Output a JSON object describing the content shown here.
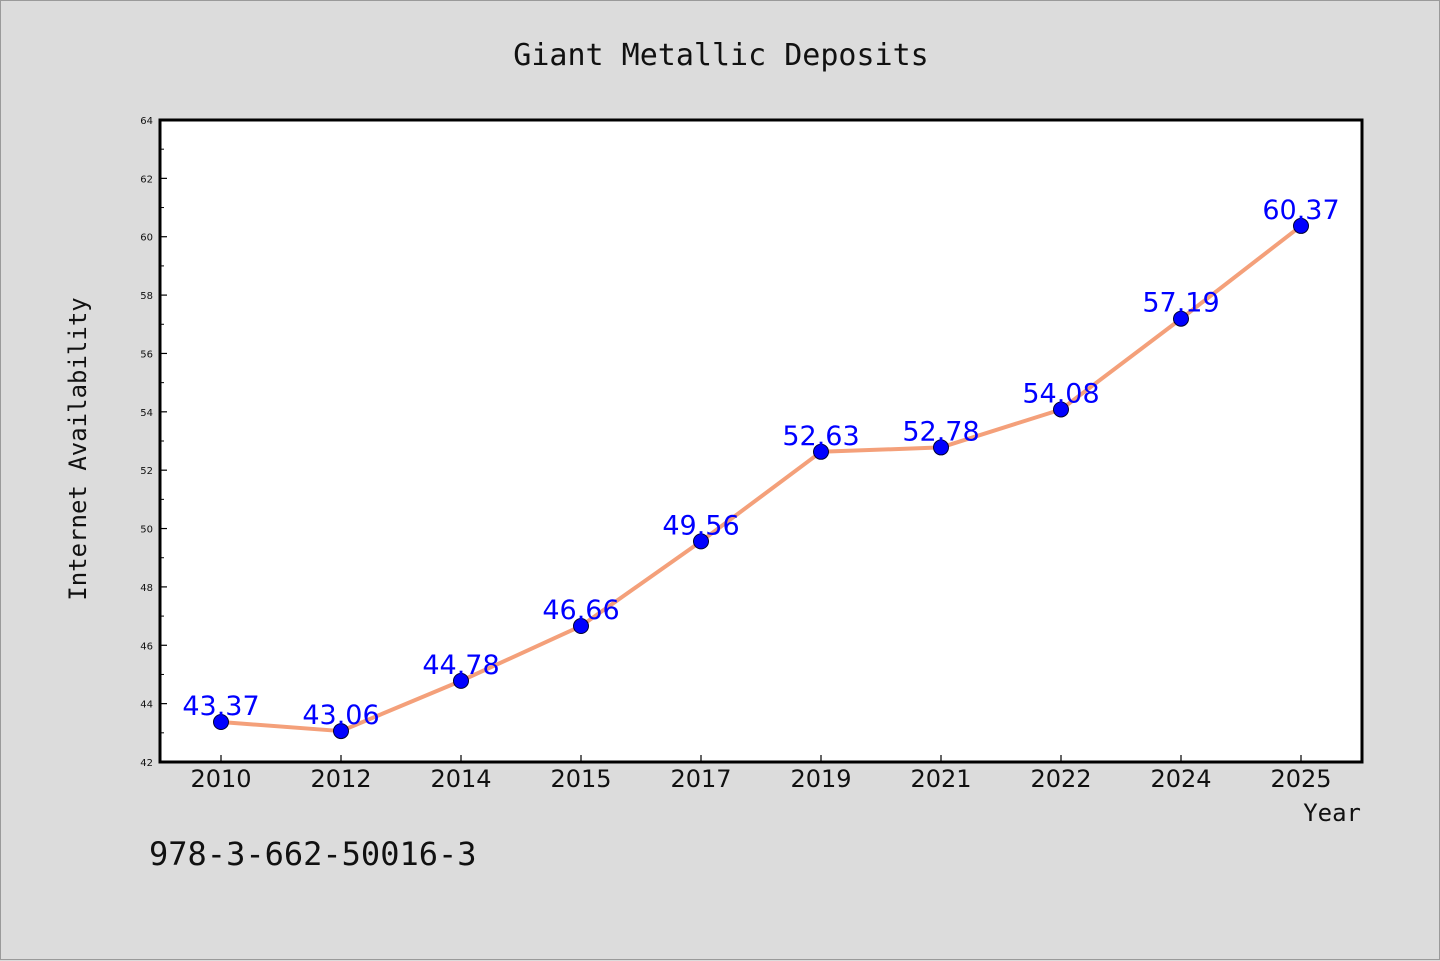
{
  "chart_data": {
    "type": "line",
    "title": "Giant Metallic Deposits",
    "xlabel": "Year",
    "ylabel": "Internet Availability",
    "categories": [
      "2010",
      "2012",
      "2014",
      "2015",
      "2017",
      "2019",
      "2021",
      "2022",
      "2024",
      "2025"
    ],
    "series": [
      {
        "values": [
          43.37,
          43.06,
          44.78,
          46.66,
          49.56,
          52.63,
          52.78,
          54.08,
          57.19,
          60.37
        ],
        "data_labels": [
          "43.37",
          "43.06",
          "44.78",
          "46.66",
          "49.56",
          "52.63",
          "52.78",
          "54.08",
          "57.19",
          "60.37"
        ],
        "line_color": "#f4a07a",
        "marker_color": "#0000ff"
      }
    ],
    "ylim": [
      42,
      64
    ],
    "yticks": [
      "42",
      "44",
      "46",
      "48",
      "50",
      "52",
      "54",
      "56",
      "58",
      "60",
      "62",
      "64"
    ],
    "grid": false,
    "legend": "none"
  },
  "footnote": "978-3-662-50016-3",
  "colors": {
    "background": "#dcdcdc",
    "plot_area": "#ffffff",
    "line": "#f4a07a",
    "marker": "#0000ff",
    "data_label": "#0000ff"
  }
}
